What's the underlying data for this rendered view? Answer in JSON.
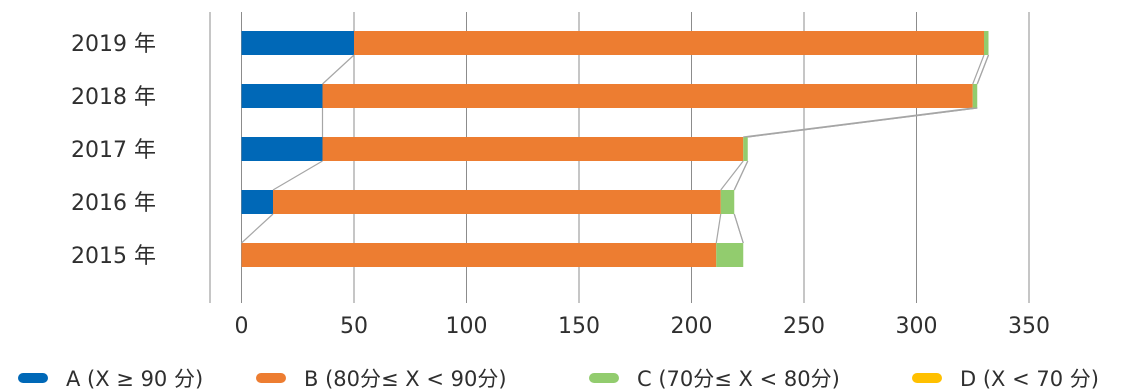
{
  "chart_data": {
    "type": "bar",
    "orientation": "horizontal",
    "stacked": true,
    "categories": [
      "2019 年",
      "2018 年",
      "2017 年",
      "2016 年",
      "2015 年"
    ],
    "series": [
      {
        "name": "A (X ≥ 90 分)",
        "color": "#0068b7",
        "values": [
          50,
          36,
          36,
          14,
          0
        ]
      },
      {
        "name": "B (80分≤ X < 90分)",
        "color": "#ed7d31",
        "values": [
          280,
          289,
          187,
          199,
          211
        ]
      },
      {
        "name": "C (70分≤ X < 80分)",
        "color": "#92cc6e",
        "values": [
          2,
          2,
          2,
          6,
          12
        ]
      },
      {
        "name": "D (X < 70 分)",
        "color": "#ffc000",
        "values": [
          0,
          0,
          0,
          0,
          0
        ]
      }
    ],
    "xlim": [
      -14,
      350
    ],
    "xticks": [
      0,
      50,
      100,
      150,
      200,
      250,
      300,
      350
    ],
    "grid": "vertical",
    "legend_position": "bottom",
    "series_lines": true,
    "title": "",
    "xlabel": "",
    "ylabel": ""
  }
}
